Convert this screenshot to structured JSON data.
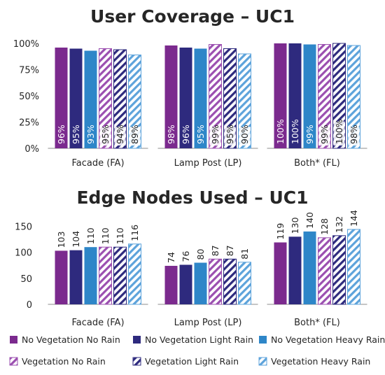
{
  "colors": {
    "no_veg_no_rain": "#7B2A8E",
    "no_veg_light_rain": "#2E2A7E",
    "no_veg_heavy_rain": "#2E86C8",
    "veg_no_rain": "#9B4FB0",
    "veg_light_rain": "#2E2A7E",
    "veg_heavy_rain": "#5DA3DB",
    "axis": "#8C8C8C"
  },
  "legend": [
    {
      "label": "No Vegetation No Rain",
      "color": "#7B2A8E",
      "hatched": false
    },
    {
      "label": "No Vegetation Light Rain",
      "color": "#2E2A7E",
      "hatched": false
    },
    {
      "label": "No Vegetation Heavy Rain",
      "color": "#2E86C8",
      "hatched": false
    },
    {
      "label": "Vegetation No Rain",
      "color": "#9B4FB0",
      "hatched": true
    },
    {
      "label": "Vegetation Light Rain",
      "color": "#2E2A7E",
      "hatched": true
    },
    {
      "label": "Vegetation Heavy Rain",
      "color": "#5DA3DB",
      "hatched": true
    }
  ],
  "chart_data": [
    {
      "type": "bar",
      "title": "User Coverage – UC1",
      "categories": [
        "Facade (FA)",
        "Lamp Post (LP)",
        "Both* (FL)"
      ],
      "ylim": [
        0,
        100
      ],
      "yticks": [
        "0%",
        "25%",
        "50%",
        "75%",
        "100%"
      ],
      "ytick_values": [
        0,
        25,
        50,
        75,
        100
      ],
      "label_suffix": "%",
      "series": [
        {
          "name": "No Vegetation No Rain",
          "values": [
            96,
            98,
            100
          ]
        },
        {
          "name": "No Vegetation Light Rain",
          "values": [
            95,
            96,
            100
          ]
        },
        {
          "name": "No Vegetation Heavy Rain",
          "values": [
            93,
            95,
            99
          ]
        },
        {
          "name": "Vegetation No Rain",
          "values": [
            95,
            99,
            99
          ]
        },
        {
          "name": "Vegetation Light Rain",
          "values": [
            94,
            95,
            100
          ]
        },
        {
          "name": "Vegetation Heavy Rain",
          "values": [
            89,
            90,
            98
          ]
        }
      ]
    },
    {
      "type": "bar",
      "title": "Edge Nodes Used – UC1",
      "categories": [
        "Facade (FA)",
        "Lamp Post (LP)",
        "Both* (FL)"
      ],
      "ylim": [
        0,
        160
      ],
      "yticks": [
        "0",
        "50",
        "100",
        "150"
      ],
      "ytick_values": [
        0,
        50,
        100,
        150
      ],
      "label_suffix": "",
      "series": [
        {
          "name": "No Vegetation No Rain",
          "values": [
            103,
            74,
            119
          ]
        },
        {
          "name": "No Vegetation Light Rain",
          "values": [
            104,
            76,
            130
          ]
        },
        {
          "name": "No Vegetation Heavy Rain",
          "values": [
            110,
            80,
            140
          ]
        },
        {
          "name": "Vegetation No Rain",
          "values": [
            110,
            87,
            128
          ]
        },
        {
          "name": "Vegetation Light Rain",
          "values": [
            110,
            87,
            132
          ]
        },
        {
          "name": "Vegetation Heavy Rain",
          "values": [
            116,
            81,
            144
          ]
        }
      ]
    }
  ]
}
